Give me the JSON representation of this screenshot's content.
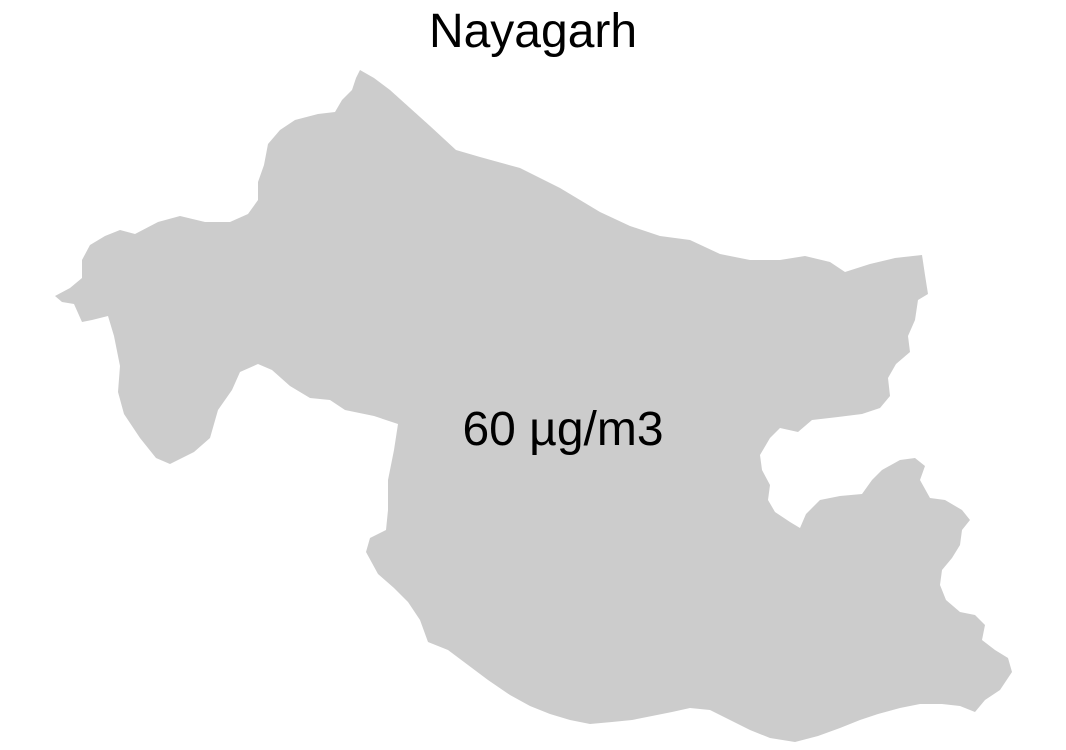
{
  "map": {
    "title": "Nayagarh",
    "value_label": "60 µg/m3",
    "fill_color": "#cccccc",
    "background_color": "#ffffff",
    "text_color": "#000000"
  }
}
